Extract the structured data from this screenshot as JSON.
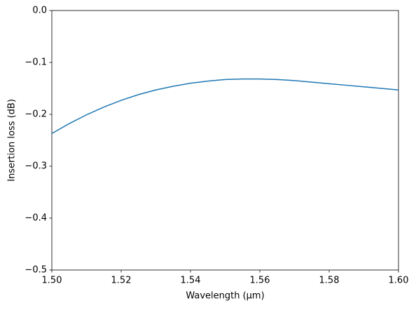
{
  "chart_data": {
    "type": "line",
    "xlabel": "Wavelength (μm)",
    "ylabel": "Insertion loss (dB)",
    "color": "#1f77b4",
    "x": [
      1.5,
      1.505,
      1.51,
      1.515,
      1.52,
      1.525,
      1.53,
      1.535,
      1.54,
      1.545,
      1.55,
      1.555,
      1.56,
      1.565,
      1.57,
      1.575,
      1.58,
      1.585,
      1.59,
      1.595,
      1.6
    ],
    "values": [
      -0.237,
      -0.218,
      -0.201,
      -0.186,
      -0.173,
      -0.162,
      -0.153,
      -0.146,
      -0.14,
      -0.136,
      -0.133,
      -0.132,
      -0.132,
      -0.133,
      -0.135,
      -0.138,
      -0.141,
      -0.144,
      -0.147,
      -0.15,
      -0.153
    ],
    "xlim": [
      1.5,
      1.6
    ],
    "xticks": [
      {
        "value": 1.5,
        "label": "1.50"
      },
      1.52,
      1.54,
      1.56,
      1.58,
      {
        "value": 1.6,
        "label": "1.60"
      }
    ],
    "ylim": [
      -0.5,
      0
    ],
    "yticks": [
      {
        "value": -0.5,
        "label": "−0.5"
      },
      {
        "value": -0.4,
        "label": "−0.4"
      },
      {
        "value": -0.3,
        "label": "−0.3"
      },
      {
        "value": -0.2,
        "label": "−0.2"
      },
      {
        "value": -0.1,
        "label": "−0.1"
      },
      {
        "value": 0,
        "label": "0.0"
      }
    ]
  }
}
